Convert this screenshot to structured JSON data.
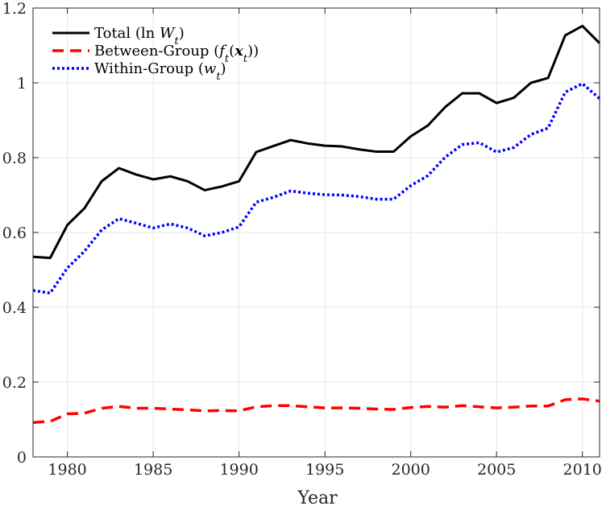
{
  "chart_data": {
    "type": "line",
    "title": "",
    "xlabel": "Year",
    "ylabel": "",
    "xlim": [
      1978,
      2011
    ],
    "ylim": [
      0,
      1.2
    ],
    "grid": true,
    "legend_position": "top-left",
    "x_ticks": [
      1980,
      1985,
      1990,
      1995,
      2000,
      2005,
      2010
    ],
    "y_ticks": [
      0,
      0.2,
      0.4,
      0.6,
      0.8,
      1.0,
      1.2
    ],
    "x_tick_labels": [
      "1980",
      "1985",
      "1990",
      "1995",
      "2000",
      "2005",
      "2010"
    ],
    "y_tick_labels": [
      "0",
      "0.2",
      "0.4",
      "0.6",
      "0.8",
      "1",
      "1.2"
    ],
    "x": [
      1978,
      1979,
      1980,
      1981,
      1982,
      1983,
      1984,
      1985,
      1986,
      1987,
      1988,
      1989,
      1990,
      1991,
      1992,
      1993,
      1994,
      1995,
      1996,
      1997,
      1998,
      1999,
      2000,
      2001,
      2002,
      2003,
      2004,
      2005,
      2006,
      2007,
      2008,
      2009,
      2010,
      2011
    ],
    "series": [
      {
        "name": "Total",
        "legend_prefix": "Total (ln ",
        "legend_symbol": "W",
        "legend_sub": "t",
        "legend_suffix": ")",
        "color": "#000000",
        "style": "solid",
        "values": [
          0.535,
          0.532,
          0.62,
          0.665,
          0.737,
          0.772,
          0.755,
          0.742,
          0.75,
          0.737,
          0.713,
          0.723,
          0.737,
          0.815,
          0.831,
          0.847,
          0.838,
          0.832,
          0.83,
          0.822,
          0.816,
          0.816,
          0.857,
          0.886,
          0.935,
          0.972,
          0.972,
          0.946,
          0.96,
          1.0,
          1.013,
          1.127,
          1.152,
          1.106
        ]
      },
      {
        "name": "Between-Group",
        "legend_prefix": "Between-Group (",
        "legend_symbol": "f",
        "legend_sub": "t",
        "legend_mid": "(",
        "legend_symbol2": "x",
        "legend_sub2": "t",
        "legend_suffix": "))",
        "color": "#ff0000",
        "style": "dashed",
        "values": [
          0.092,
          0.095,
          0.115,
          0.117,
          0.13,
          0.135,
          0.13,
          0.13,
          0.128,
          0.126,
          0.123,
          0.124,
          0.123,
          0.134,
          0.137,
          0.137,
          0.134,
          0.131,
          0.131,
          0.13,
          0.128,
          0.127,
          0.132,
          0.135,
          0.133,
          0.137,
          0.134,
          0.131,
          0.133,
          0.136,
          0.136,
          0.153,
          0.155,
          0.149
        ]
      },
      {
        "name": "Within-Group",
        "legend_prefix": "Within-Group (",
        "legend_symbol": "w",
        "legend_sub": "t",
        "legend_suffix": ")",
        "color": "#0000ff",
        "style": "dotted",
        "values": [
          0.445,
          0.438,
          0.505,
          0.55,
          0.607,
          0.637,
          0.625,
          0.612,
          0.623,
          0.612,
          0.591,
          0.6,
          0.615,
          0.681,
          0.694,
          0.711,
          0.705,
          0.701,
          0.7,
          0.696,
          0.689,
          0.689,
          0.725,
          0.752,
          0.801,
          0.835,
          0.84,
          0.815,
          0.827,
          0.862,
          0.879,
          0.975,
          0.998,
          0.958
        ]
      }
    ]
  }
}
